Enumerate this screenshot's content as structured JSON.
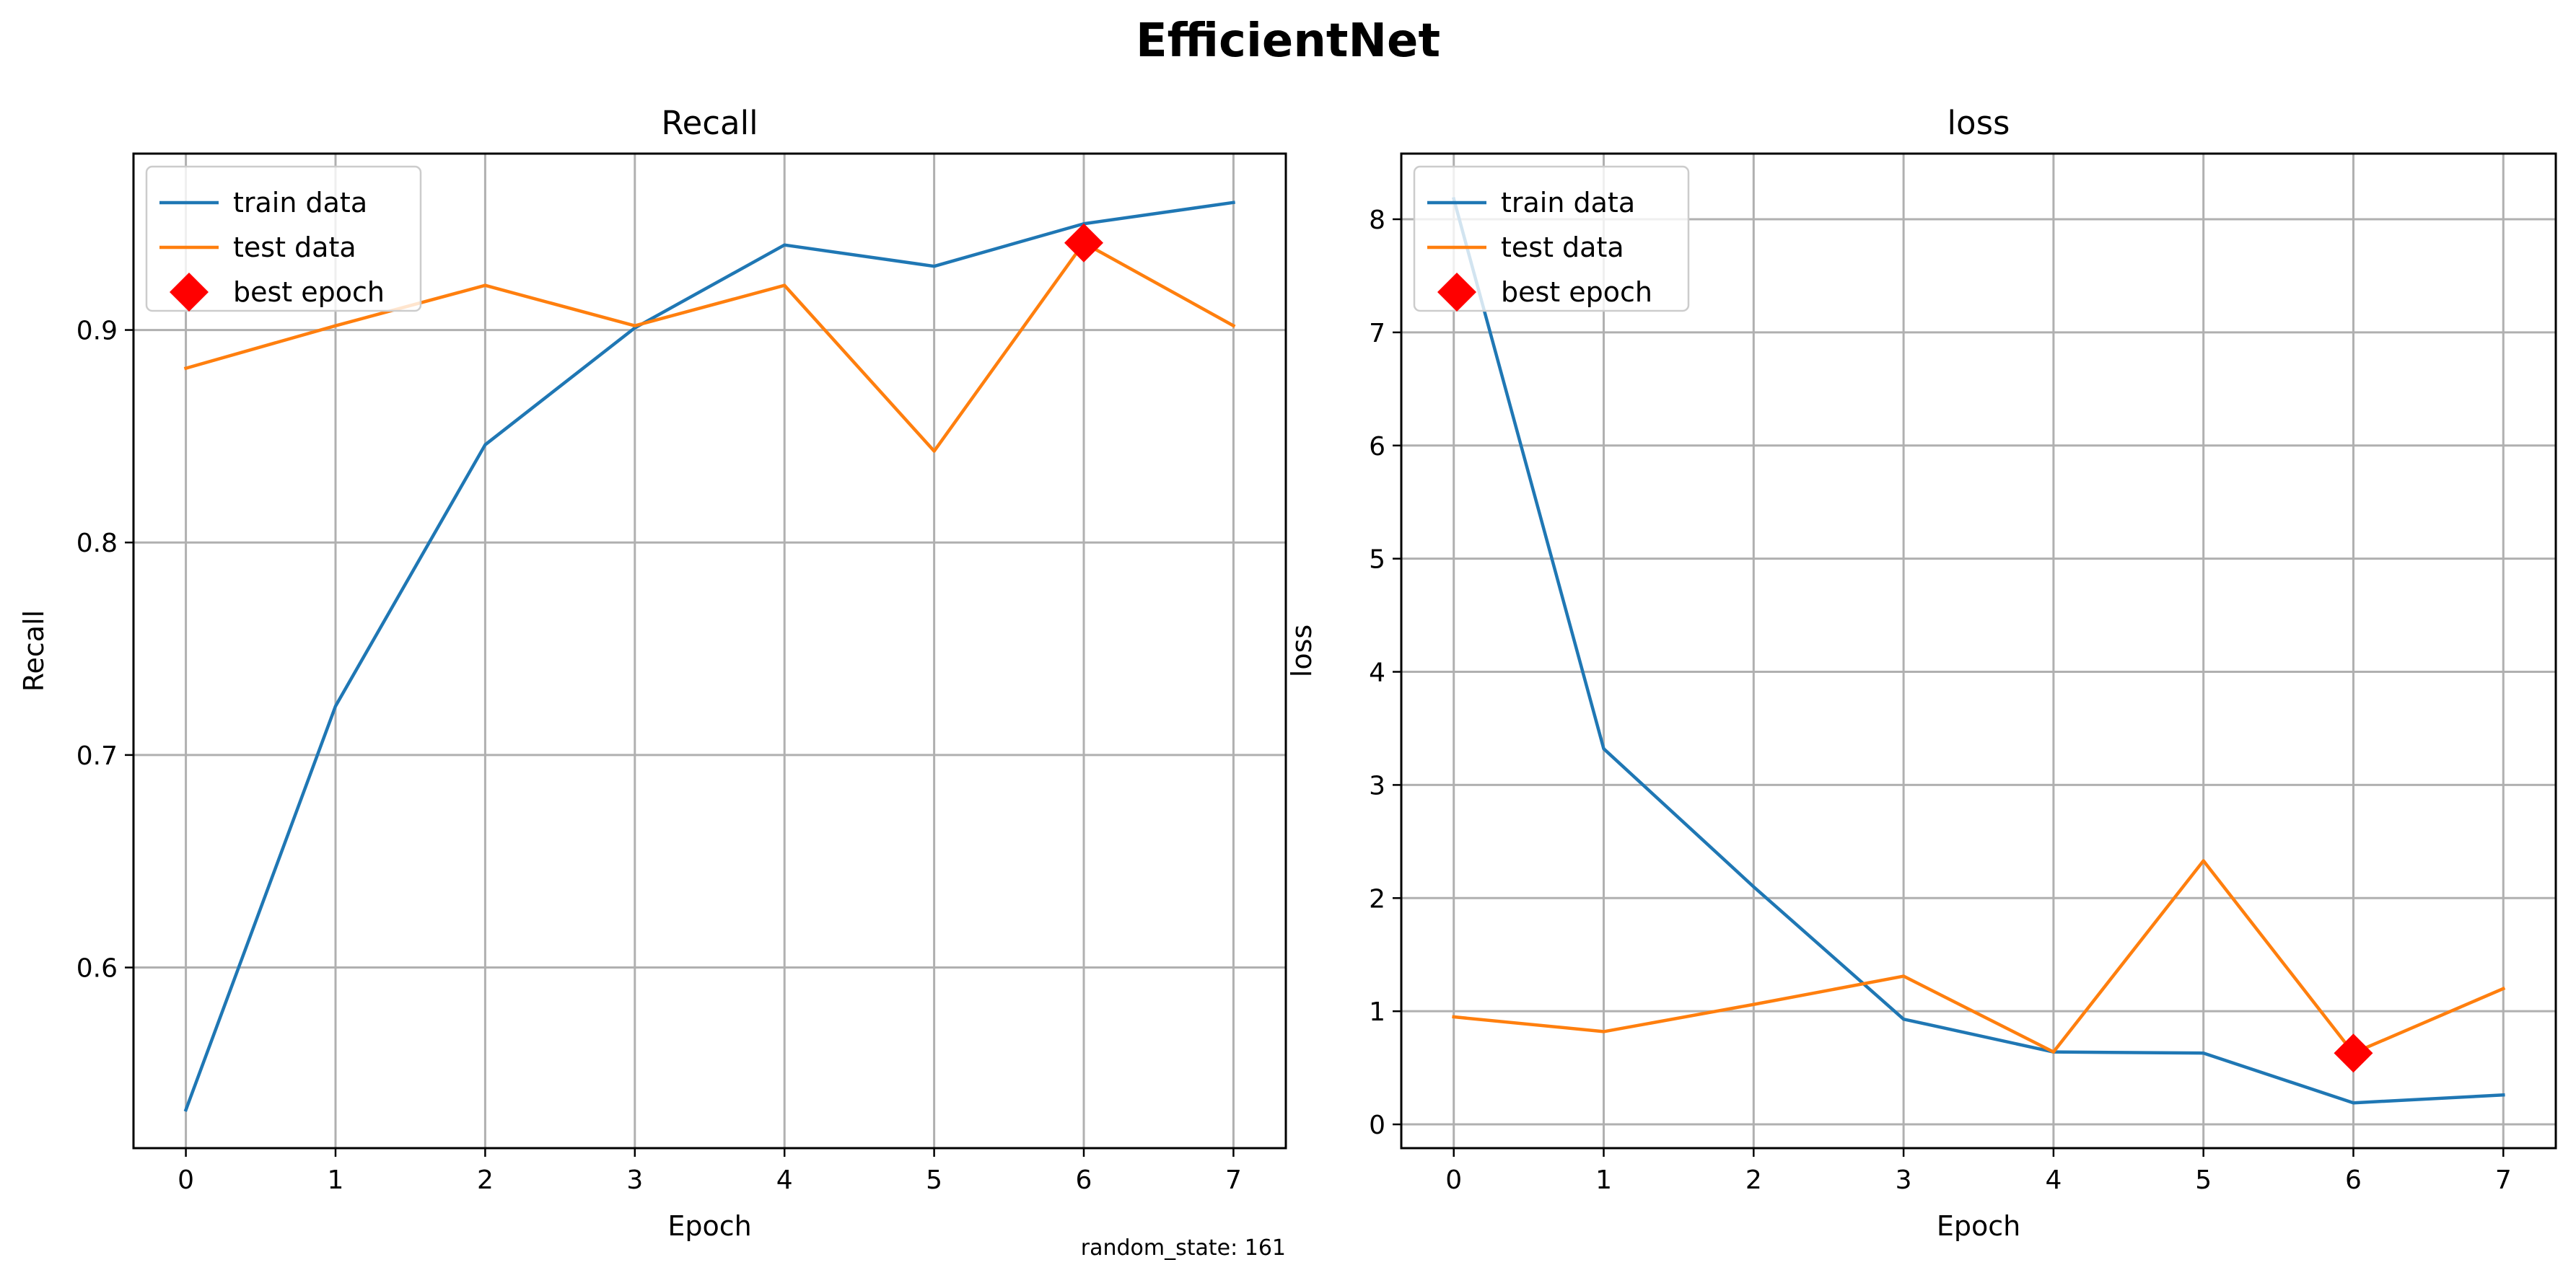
{
  "figure": {
    "suptitle": "EfficientNet",
    "footnote": "random_state: 161"
  },
  "colors": {
    "train": "#1f77b4",
    "test": "#ff7f0e",
    "best": "#ff0000"
  },
  "chart_data": [
    {
      "type": "line",
      "title": "Recall",
      "xlabel": "Epoch",
      "ylabel": "Recall",
      "x": [
        0,
        1,
        2,
        3,
        4,
        5,
        6,
        7
      ],
      "xlim": [
        -0.35,
        7.35
      ],
      "ylim": [
        0.515,
        0.983
      ],
      "xticks": [
        0,
        1,
        2,
        3,
        4,
        5,
        6,
        7
      ],
      "yticks": [
        0.6,
        0.7,
        0.8,
        0.9
      ],
      "ytick_labels": [
        "0.6",
        "0.7",
        "0.8",
        "0.9"
      ],
      "grid": true,
      "legend_position": "upper-left",
      "series": [
        {
          "name": "train data",
          "color_key": "train",
          "values": [
            0.533,
            0.723,
            0.846,
            0.901,
            0.94,
            0.93,
            0.95,
            0.96
          ]
        },
        {
          "name": "test data",
          "color_key": "test",
          "values": [
            0.882,
            0.902,
            0.921,
            0.902,
            0.921,
            0.843,
            0.941,
            0.902
          ]
        }
      ],
      "best_epoch": {
        "name": "best epoch",
        "x": 6,
        "y": 0.941
      }
    },
    {
      "type": "line",
      "title": "loss",
      "xlabel": "Epoch",
      "ylabel": "loss",
      "x": [
        0,
        1,
        2,
        3,
        4,
        5,
        6,
        7
      ],
      "xlim": [
        -0.35,
        7.35
      ],
      "ylim": [
        -0.21,
        8.58
      ],
      "xticks": [
        0,
        1,
        2,
        3,
        4,
        5,
        6,
        7
      ],
      "yticks": [
        0,
        1,
        2,
        3,
        4,
        5,
        6,
        7,
        8
      ],
      "ytick_labels": [
        "0",
        "1",
        "2",
        "3",
        "4",
        "5",
        "6",
        "7",
        "8"
      ],
      "grid": true,
      "legend_position": "upper-left",
      "series": [
        {
          "name": "train data",
          "color_key": "train",
          "values": [
            8.18,
            3.32,
            2.1,
            0.93,
            0.64,
            0.63,
            0.19,
            0.26
          ]
        },
        {
          "name": "test data",
          "color_key": "test",
          "values": [
            0.95,
            0.82,
            1.06,
            1.31,
            0.64,
            2.33,
            0.63,
            1.2
          ]
        }
      ],
      "best_epoch": {
        "name": "best epoch",
        "x": 6,
        "y": 0.63
      }
    }
  ]
}
